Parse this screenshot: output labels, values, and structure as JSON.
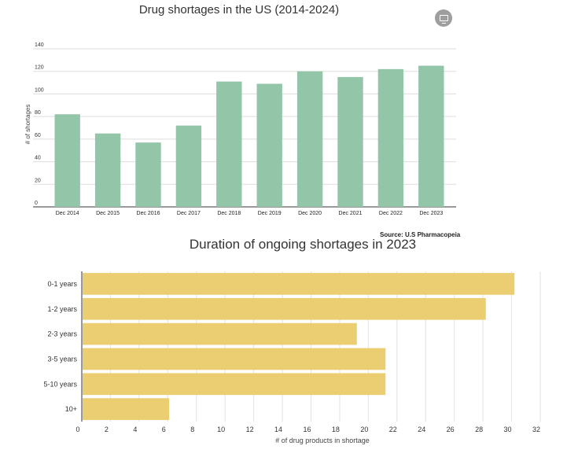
{
  "page": {
    "embed_icon": "monitor-icon"
  },
  "chart_data": [
    {
      "type": "bar",
      "title": "Drug shortages in the US (2014-2024)",
      "ylabel": "# of shortages",
      "xlabel": "",
      "categories": [
        "Dec 2014",
        "Dec 2015",
        "Dec 2016",
        "Dec 2017",
        "Dec 2018",
        "Dec 2019",
        "Dec 2020",
        "Dec 2021",
        "Dec 2022",
        "Dec 2023"
      ],
      "values": [
        82,
        65,
        57,
        72,
        111,
        109,
        120,
        115,
        122,
        125
      ],
      "ylim": [
        0,
        140
      ],
      "yticks": [
        "0",
        "20",
        "40",
        "60",
        "80",
        "100",
        "120",
        "140"
      ],
      "grid": true,
      "color": "#93c5a9",
      "source": "Source: U.S Pharmacopeia"
    },
    {
      "type": "bar",
      "orientation": "horizontal",
      "title": "Duration of ongoing shortages in 2023",
      "xlabel": "# of drug products in shortage",
      "ylabel": "",
      "categories": [
        "0-1 years",
        "1-2 years",
        "2-3 years",
        "3-5 years",
        "5-10 years",
        "10+"
      ],
      "values": [
        30.2,
        28.2,
        19.2,
        21.2,
        21.2,
        6.1
      ],
      "xlim": [
        0,
        32
      ],
      "xticks": [
        "0",
        "2",
        "4",
        "6",
        "8",
        "10",
        "12",
        "14",
        "16",
        "18",
        "20",
        "22",
        "24",
        "26",
        "28",
        "30",
        "32"
      ],
      "grid": true,
      "color": "#ecce72"
    }
  ]
}
